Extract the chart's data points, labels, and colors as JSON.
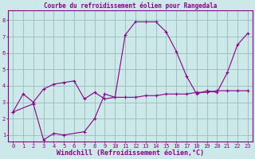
{
  "title": "Courbe du refroidissement éolien pour Rangedala",
  "xlabel": "Windchill (Refroidissement éolien,°C)",
  "bg_color": "#cce8e8",
  "line_color": "#880088",
  "grid_color": "#99bbbb",
  "xlim": [
    -0.5,
    23.5
  ],
  "ylim": [
    0.6,
    8.6
  ],
  "yticks": [
    1,
    2,
    3,
    4,
    5,
    6,
    7,
    8
  ],
  "xticks": [
    0,
    1,
    2,
    3,
    4,
    5,
    6,
    7,
    8,
    9,
    10,
    11,
    12,
    13,
    14,
    15,
    16,
    17,
    18,
    19,
    20,
    21,
    22,
    23
  ],
  "series1_x": [
    0,
    1,
    2,
    3,
    4,
    5,
    6,
    7,
    8,
    9,
    10,
    11,
    12,
    13,
    14,
    15,
    16,
    17,
    18,
    19,
    20,
    21,
    22,
    23
  ],
  "series1_y": [
    2.4,
    3.5,
    3.0,
    3.8,
    4.1,
    4.2,
    4.3,
    3.2,
    3.6,
    3.2,
    3.3,
    3.3,
    3.3,
    3.4,
    3.4,
    3.5,
    3.5,
    3.5,
    3.6,
    3.6,
    3.7,
    3.7,
    3.7,
    3.7
  ],
  "series2_x": [
    0,
    2,
    3,
    4,
    5,
    7,
    8,
    9,
    10,
    11,
    12,
    13,
    14,
    15,
    16,
    17,
    18,
    19,
    20,
    21,
    22,
    23
  ],
  "series2_y": [
    2.4,
    2.9,
    0.7,
    1.1,
    1.0,
    1.2,
    2.0,
    3.5,
    3.3,
    7.1,
    7.9,
    7.9,
    7.9,
    7.3,
    6.1,
    4.6,
    3.5,
    3.7,
    3.6,
    4.8,
    6.5,
    7.2
  ],
  "title_fontsize": 5.5,
  "xlabel_fontsize": 6.0,
  "tick_fontsize": 5.0,
  "axis_color": "#880088",
  "marker_size": 3,
  "line_width": 0.8
}
